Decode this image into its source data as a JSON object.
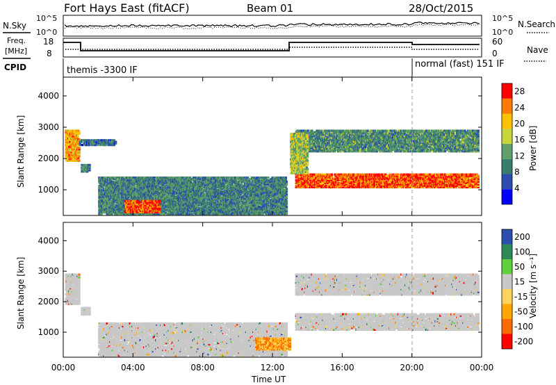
{
  "header": {
    "title": "Fort Hays East (fitACF)",
    "beam": "Beam 01",
    "date": "28/Oct/2015"
  },
  "top_panels": {
    "nsky_label": "N.Sky",
    "nsearch_label": "N.Search",
    "nsky_ticks": [
      "10^5",
      "10^0"
    ],
    "nsearch_ticks": [
      "10^5",
      "10^0"
    ],
    "freq_label": [
      "Freq.",
      "[MHz]"
    ],
    "freq_ticks": [
      "18",
      "8"
    ],
    "nave_label": "Nave",
    "nave_ticks": [
      "60",
      "0"
    ],
    "cpid_label": "CPID",
    "cpid_segments": [
      {
        "text": "themis -3300 IF",
        "start": "00:00"
      },
      {
        "text": "normal (fast) 151 IF",
        "start": "20:00"
      }
    ]
  },
  "colors": {
    "power_scale": [
      "#0000ff",
      "#2b4dae",
      "#3a7d6f",
      "#5f9f6a",
      "#c8d43a",
      "#ffc000",
      "#ff7a00",
      "#ff0000"
    ],
    "velocity_scale": [
      "#ff0000",
      "#ff6a00",
      "#ffa500",
      "#ffd35a",
      "#c8c8c8",
      "#5fd03a",
      "#2e8b57",
      "#2b4dae"
    ],
    "ground_scatter": "#c8c8c8"
  },
  "chart_data": [
    {
      "type": "heatmap",
      "name": "power_panel",
      "ylabel": "Slant Range [km]",
      "xlabel": "",
      "x_ticks": [
        "00:00",
        "04:00",
        "08:00",
        "12:00",
        "16:00",
        "20:00",
        "00:00"
      ],
      "y_ticks": [
        "1000",
        "2000",
        "3000",
        "4000"
      ],
      "xlim_hours": [
        0,
        24
      ],
      "ylim_km": [
        180,
        4600
      ],
      "colorbar": {
        "label": "Power [dB]",
        "ticks": [
          "4",
          "8",
          "12",
          "16",
          "20",
          "24",
          "28"
        ],
        "range": [
          0,
          30
        ]
      },
      "regions": [
        {
          "t0": 0.1,
          "t1": 0.9,
          "r0": 1900,
          "r1": 2900,
          "level": 22
        },
        {
          "t0": 1.0,
          "t1": 1.5,
          "r0": 1550,
          "r1": 1800,
          "level": 10
        },
        {
          "t0": 0.9,
          "t1": 3.0,
          "r0": 2400,
          "r1": 2600,
          "level": 8
        },
        {
          "t0": 2.0,
          "t1": 12.8,
          "r0": 200,
          "r1": 1400,
          "level": 10
        },
        {
          "t0": 3.5,
          "t1": 5.5,
          "r0": 250,
          "r1": 650,
          "level": 26
        },
        {
          "t0": 13.3,
          "t1": 23.8,
          "r0": 1050,
          "r1": 1500,
          "level": 26
        },
        {
          "t0": 13.3,
          "t1": 23.8,
          "r0": 2200,
          "r1": 2900,
          "level": 11
        },
        {
          "t0": 13.0,
          "t1": 14.0,
          "r0": 1500,
          "r1": 2800,
          "level": 16
        }
      ]
    },
    {
      "type": "heatmap",
      "name": "velocity_panel",
      "ylabel": "Slant Range [km]",
      "xlabel": "Time UT",
      "x_ticks": [
        "00:00",
        "04:00",
        "08:00",
        "12:00",
        "16:00",
        "20:00",
        "00:00"
      ],
      "y_ticks": [
        "1000",
        "2000",
        "3000",
        "4000"
      ],
      "xlim_hours": [
        0,
        24
      ],
      "ylim_km": [
        180,
        4600
      ],
      "colorbar": {
        "label": "Velocity [m s⁻¹]",
        "ticks": [
          "200",
          "100",
          "50",
          "15",
          "-15",
          "-50",
          "-100",
          "-200"
        ]
      },
      "regions": [
        {
          "t0": 0.1,
          "t1": 0.9,
          "r0": 1900,
          "r1": 2900,
          "kind": "ground"
        },
        {
          "t0": 1.0,
          "t1": 1.5,
          "r0": 1550,
          "r1": 1800,
          "kind": "ground"
        },
        {
          "t0": 2.0,
          "t1": 12.8,
          "r0": 200,
          "r1": 1300,
          "kind": "ground"
        },
        {
          "t0": 11.0,
          "t1": 13.0,
          "r0": 400,
          "r1": 800,
          "kind": "negative"
        },
        {
          "t0": 13.3,
          "t1": 23.8,
          "r0": 1050,
          "r1": 1600,
          "kind": "ground"
        },
        {
          "t0": 13.3,
          "t1": 23.8,
          "r0": 2200,
          "r1": 2900,
          "kind": "ground"
        }
      ]
    }
  ]
}
